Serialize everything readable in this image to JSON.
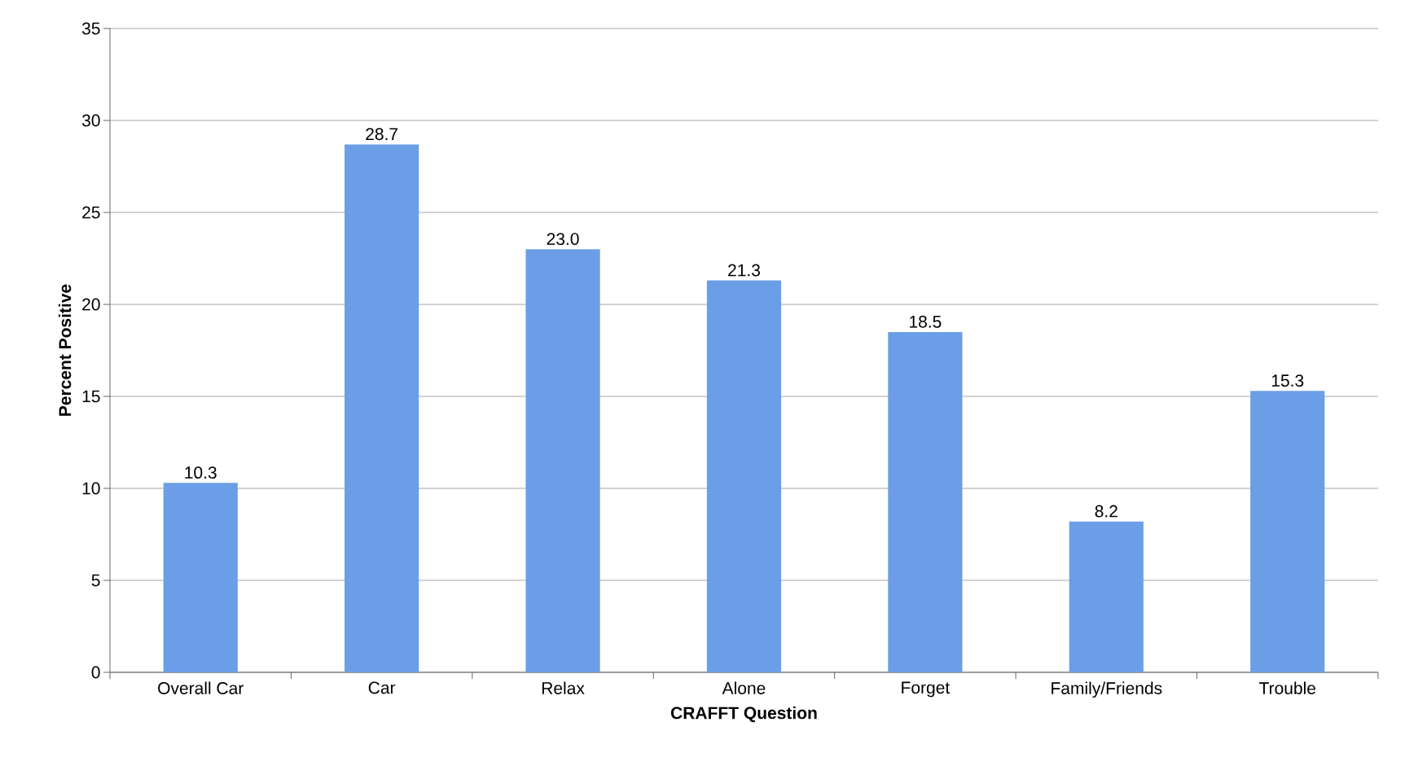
{
  "chart_data": {
    "type": "bar",
    "xlabel": "CRAFFT Question",
    "ylabel": "Percent Positive",
    "categories": [
      "Overall Car",
      "Car",
      "Relax",
      "Alone",
      "Forget",
      "Family/Friends",
      "Trouble"
    ],
    "values": [
      10.3,
      28.7,
      23.0,
      21.3,
      18.5,
      8.2,
      15.3
    ],
    "value_labels": [
      "10.3",
      "28.7",
      "23.0",
      "21.3",
      "18.5",
      "8.2",
      "15.3"
    ],
    "color": "#6b9ee6",
    "ylim": [
      0,
      35
    ],
    "yticks": [
      0,
      5,
      10,
      15,
      20,
      25,
      30,
      35
    ],
    "grid": "y"
  }
}
